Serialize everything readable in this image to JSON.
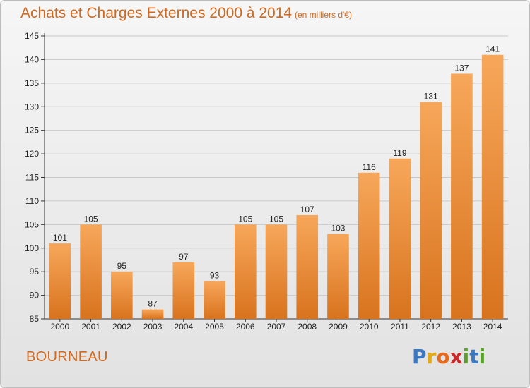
{
  "title": "Achats et Charges Externes 2000 à 2014",
  "subtitle": "(en milliers d'€)",
  "town": "BOURNEAU",
  "logo": {
    "letters": [
      {
        "ch": "P",
        "color": "#3a78c4"
      },
      {
        "ch": "r",
        "color": "#e2a91a"
      },
      {
        "ch": "o",
        "color": "#e86a1c"
      },
      {
        "ch": "x",
        "color": "#cc2a2a"
      },
      {
        "ch": "i",
        "color": "#5aa02c"
      },
      {
        "ch": "t",
        "color": "#3a78c4"
      },
      {
        "ch": "i",
        "color": "#5aa02c"
      }
    ]
  },
  "colors": {
    "bar_top": "#f7a75a",
    "bar_bottom": "#d8731e",
    "accent": "#d2691e"
  },
  "chart_data": {
    "type": "bar",
    "categories": [
      "2000",
      "2001",
      "2002",
      "2003",
      "2004",
      "2005",
      "2006",
      "2007",
      "2008",
      "2009",
      "2010",
      "2011",
      "2012",
      "2013",
      "2014"
    ],
    "values": [
      101,
      105,
      95,
      87,
      97,
      93,
      105,
      105,
      107,
      103,
      116,
      119,
      131,
      137,
      141
    ],
    "ylim": [
      85,
      145
    ],
    "yticks": [
      85,
      90,
      95,
      100,
      105,
      110,
      115,
      120,
      125,
      130,
      135,
      140,
      145
    ],
    "grid": true
  }
}
